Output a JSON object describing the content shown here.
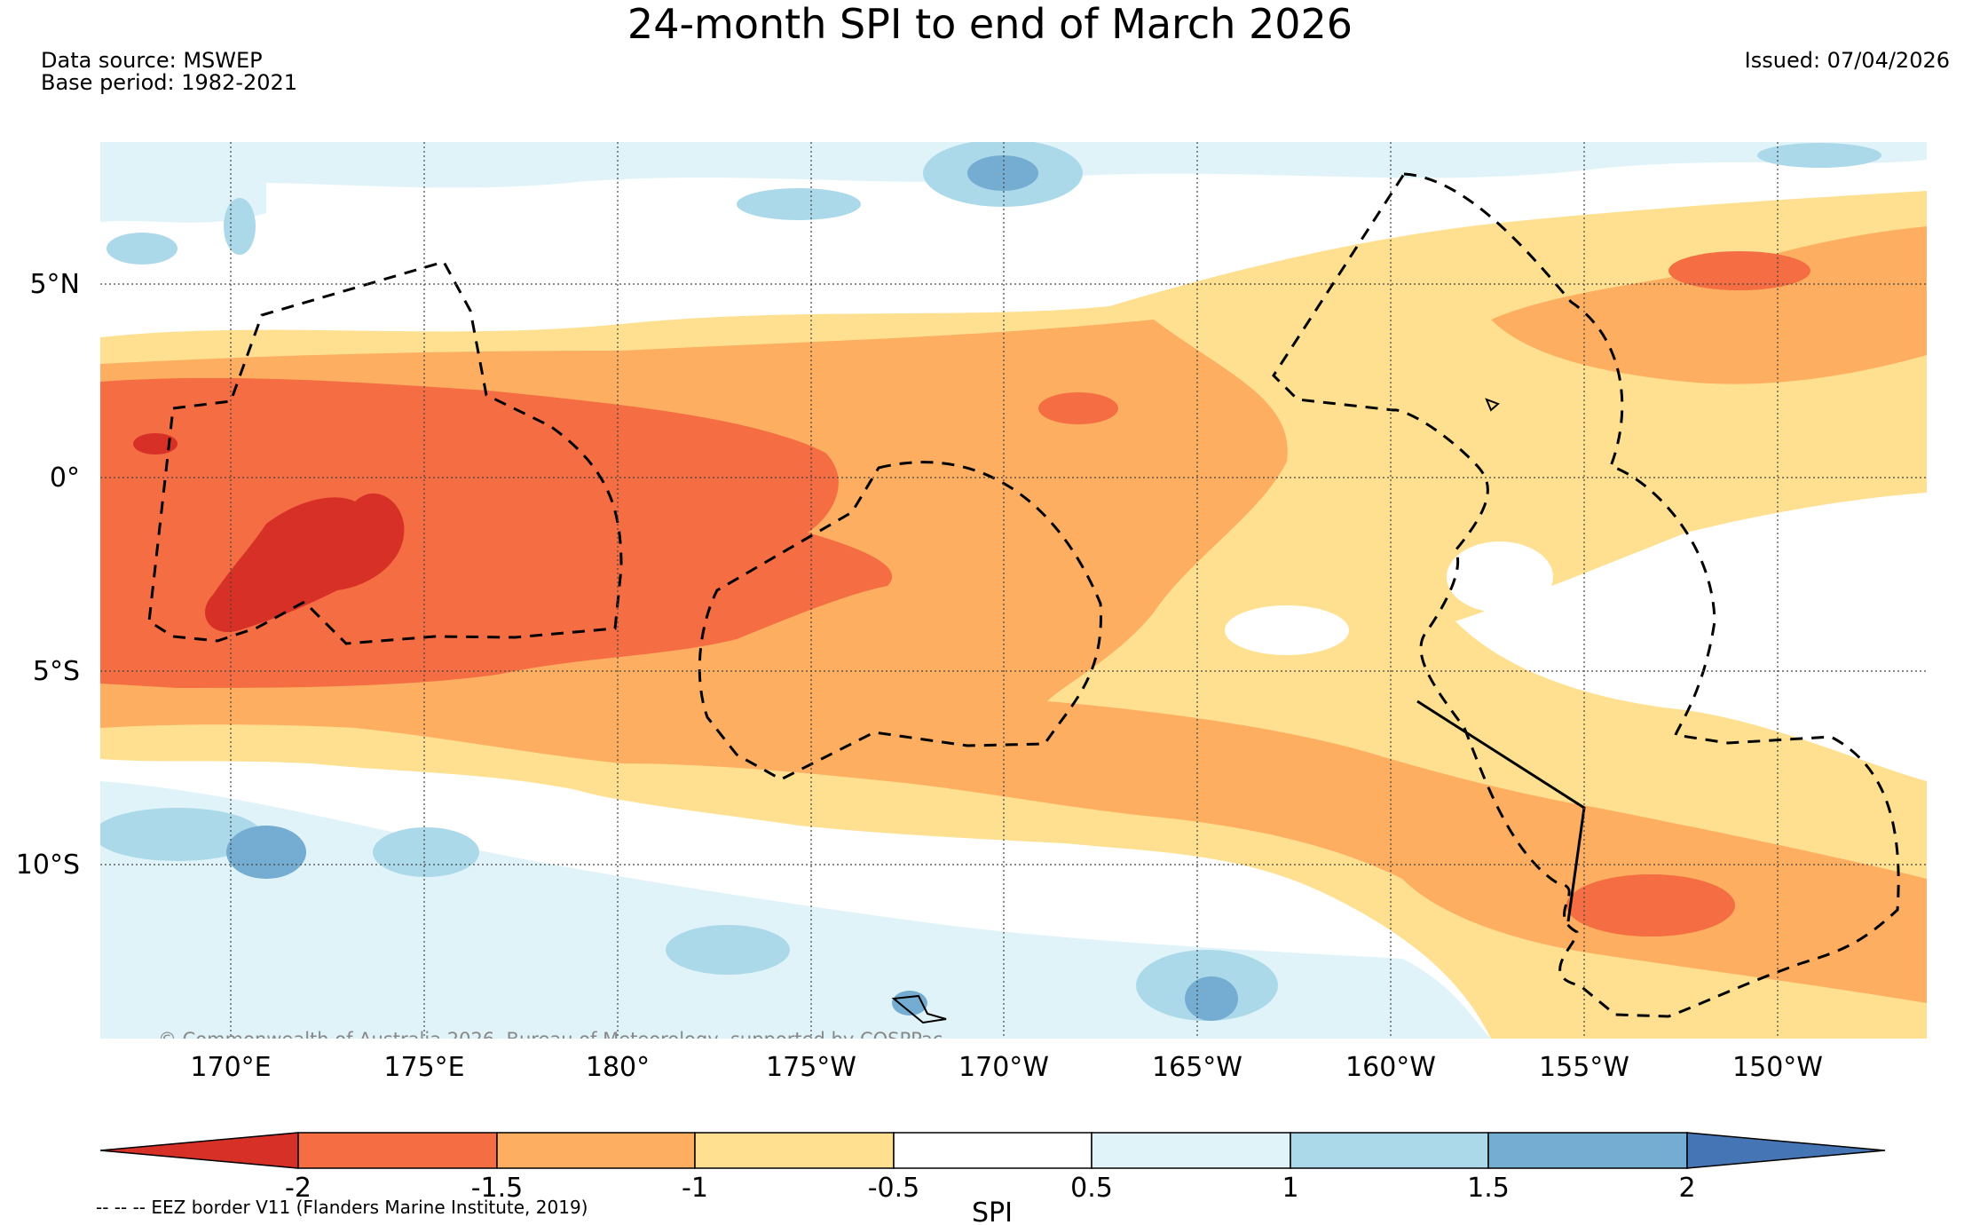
{
  "title": "24-month SPI to end of March 2026",
  "data_source": "Data source: MSWEP",
  "base_period": "Base period: 1982-2021",
  "issued": "Issued: 07/04/2026",
  "copyright": "© Commonwealth of Australia 2026, Bureau of Meteorology, supported by COSPPac",
  "lat_labels": [
    "5°N",
    "0°",
    "5°S",
    "10°S"
  ],
  "lon_labels": [
    "170°E",
    "175°E",
    "180°",
    "175°W",
    "170°W",
    "165°W",
    "160°W",
    "155°W",
    "150°W"
  ],
  "colorbar": {
    "ticks": [
      "-2",
      "-1.5",
      "-1",
      "-0.5",
      "0.5",
      "1",
      "1.5",
      "2"
    ],
    "label": "SPI",
    "colors": [
      "#d73027",
      "#f46d43",
      "#fdae61",
      "#fee090",
      "#ffffff",
      "#e0f3f8",
      "#abd9e9",
      "#74add1",
      "#4575b4"
    ]
  },
  "eez_note": "-- -- -- EEZ border V11 (Flanders Marine Institute, 2019)"
}
